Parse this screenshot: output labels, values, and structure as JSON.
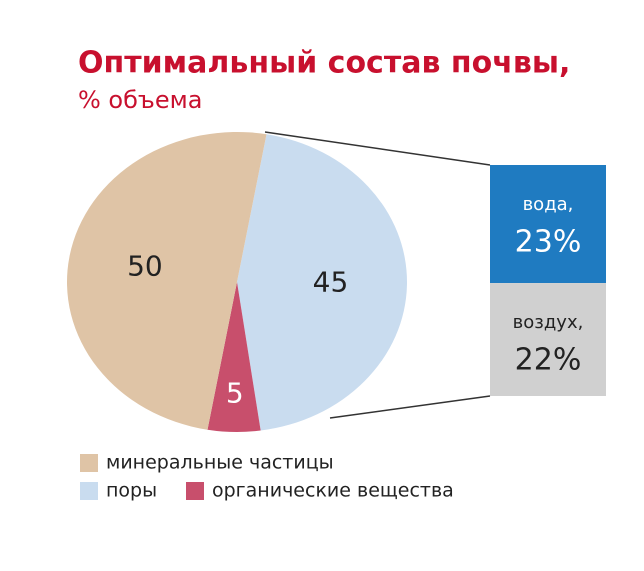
{
  "chart_data": {
    "type": "pie",
    "title": "Оптимальный состав почвы,",
    "subtitle": "% объема",
    "categories": [
      "минеральные частицы",
      "поры",
      "органические вещества"
    ],
    "values": [
      50,
      45,
      5
    ],
    "colors": [
      "#dfc4a6",
      "#c9dcef",
      "#c84f6c"
    ],
    "breakdown": {
      "categories": [
        "вода,",
        "воздух,"
      ],
      "values": [
        23,
        22
      ],
      "value_labels": [
        "23%",
        "22%"
      ],
      "colors": [
        "#1f7bc1",
        "#d0d0d0"
      ]
    }
  }
}
